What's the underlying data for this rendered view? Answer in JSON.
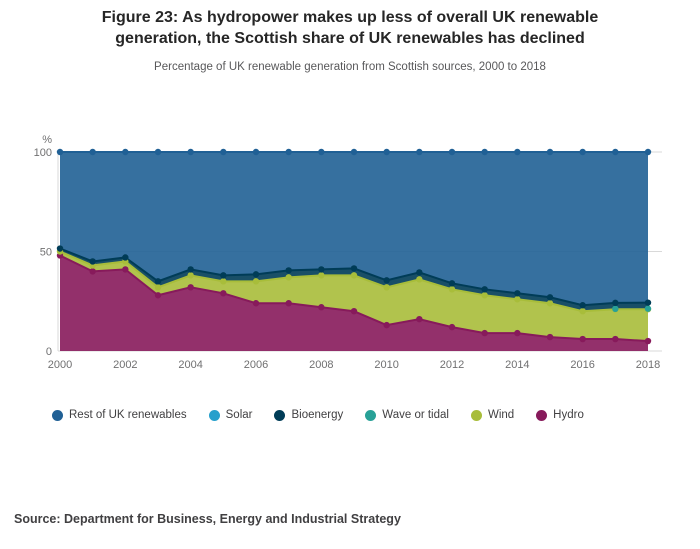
{
  "figure": {
    "title": "Figure 23: As hydropower makes up less of overall UK renewable generation, the Scottish share of UK renewables has declined",
    "subtitle": "Percentage of UK renewable generation from Scottish sources, 2000 to 2018",
    "source": "Source: Department for Business, Energy and Industrial Strategy"
  },
  "y_axis": {
    "unit_label": "%",
    "ticks": [
      0,
      50,
      100
    ]
  },
  "x_axis": {
    "tick_labels": [
      "2000",
      "2002",
      "2004",
      "2006",
      "2008",
      "2010",
      "2012",
      "2014",
      "2016",
      "2018"
    ]
  },
  "chart_data": {
    "type": "area",
    "stacked": true,
    "title": "Percentage of UK renewable generation from Scottish sources, 2000 to 2018",
    "xlabel": "",
    "ylabel": "%",
    "ylim": [
      0,
      100
    ],
    "grid": true,
    "legend_position": "bottom",
    "x": [
      2000,
      2001,
      2002,
      2003,
      2004,
      2005,
      2006,
      2007,
      2008,
      2009,
      2010,
      2011,
      2012,
      2013,
      2014,
      2015,
      2016,
      2017,
      2018
    ],
    "series": [
      {
        "name": "Hydro",
        "color": "#871A5B",
        "values": [
          48,
          40,
          41,
          28,
          32,
          29,
          24,
          24,
          22,
          20,
          13,
          16,
          12,
          9,
          9,
          7,
          6,
          6,
          5
        ]
      },
      {
        "name": "Wind",
        "color": "#A8BD3A",
        "values": [
          2,
          3,
          4,
          4,
          6,
          6,
          11,
          13,
          16,
          18,
          19,
          20,
          19,
          19,
          17,
          17,
          14,
          15,
          16
        ]
      },
      {
        "name": "Wave or tidal",
        "color": "#28A197",
        "values": [
          0,
          0,
          0,
          0,
          0,
          0,
          0,
          0,
          0,
          0,
          0,
          0,
          0,
          0,
          0,
          0,
          0,
          0.2,
          0.3
        ]
      },
      {
        "name": "Bioenergy",
        "color": "#003C57",
        "values": [
          1.5,
          2,
          2,
          3,
          3,
          3,
          3.5,
          3.5,
          3,
          3.5,
          3.5,
          3.5,
          3,
          3,
          3,
          3,
          3,
          3,
          3
        ]
      },
      {
        "name": "Solar",
        "color": "#27A0CC",
        "values": [
          0,
          0,
          0,
          0,
          0,
          0,
          0,
          0,
          0,
          0,
          0,
          0,
          0.1,
          0.1,
          0.1,
          0.1,
          0.1,
          0.1,
          0.1
        ]
      },
      {
        "name": "Rest of UK renewables",
        "color": "#206095",
        "values": [
          48.5,
          55,
          53,
          65,
          59,
          62,
          61.5,
          59.5,
          59,
          58.5,
          64.5,
          60.5,
          65.9,
          68.9,
          70.9,
          72.9,
          76.9,
          75.7,
          75.6
        ]
      }
    ],
    "legend_order": [
      "Rest of UK renewables",
      "Solar",
      "Bioenergy",
      "Wave or tidal",
      "Wind",
      "Hydro"
    ]
  }
}
